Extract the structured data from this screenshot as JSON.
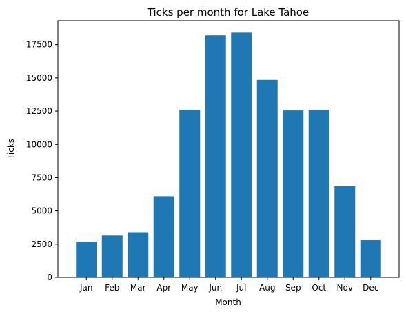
{
  "chart_data": {
    "type": "bar",
    "title": "Ticks per month for Lake Tahoe",
    "xlabel": "Month",
    "ylabel": "Ticks",
    "categories": [
      "Jan",
      "Feb",
      "Mar",
      "Apr",
      "May",
      "Jun",
      "Jul",
      "Aug",
      "Sep",
      "Oct",
      "Nov",
      "Dec"
    ],
    "values": [
      2700,
      3150,
      3400,
      6100,
      12600,
      18200,
      18400,
      14850,
      12550,
      12600,
      6850,
      2800
    ],
    "ylim": [
      0,
      19300
    ],
    "yticks": [
      0,
      2500,
      5000,
      7500,
      10000,
      12500,
      15000,
      17500
    ],
    "ytick_labels": [
      "0",
      "2500",
      "5000",
      "7500",
      "10000",
      "12500",
      "15000",
      "17500"
    ],
    "bar_color": "#1f77b4",
    "grid": false,
    "legend": false
  }
}
